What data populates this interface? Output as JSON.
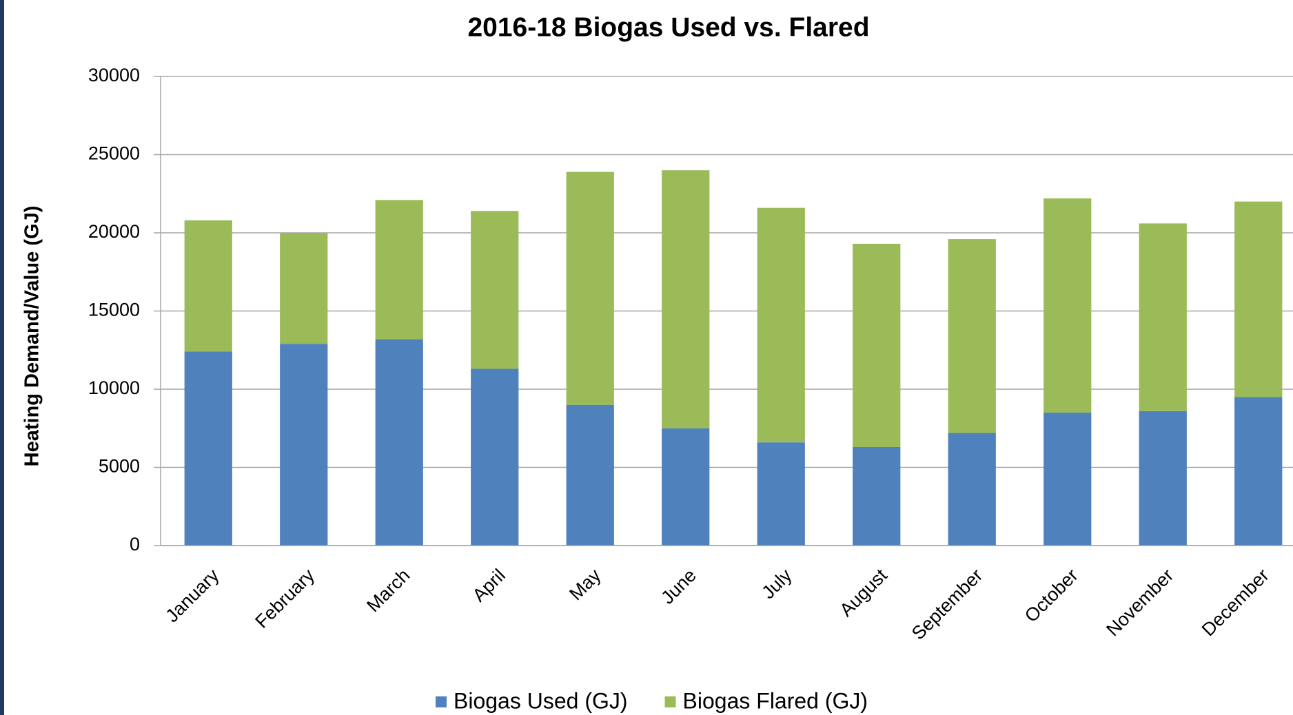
{
  "chart_data": {
    "type": "stacked_bar",
    "title": "2016-18 Biogas Used vs. Flared",
    "y_label": "Heating Demand/Value (GJ)",
    "categories": [
      "January",
      "February",
      "March",
      "April",
      "May",
      "June",
      "July",
      "August",
      "September",
      "October",
      "November",
      "December"
    ],
    "series": [
      {
        "name": "Biogas Used (GJ)",
        "color": "#4f81bd",
        "values": [
          12400,
          12900,
          13200,
          11300,
          9000,
          7500,
          6600,
          6300,
          7200,
          8500,
          8600,
          9500
        ]
      },
      {
        "name": "Biogas Flared (GJ)",
        "color": "#9bbb59",
        "values": [
          8400,
          7100,
          8900,
          10100,
          14900,
          16500,
          15000,
          13000,
          12400,
          13700,
          12000,
          12500
        ]
      }
    ],
    "ylim": [
      0,
      30000
    ],
    "yticks": [
      0,
      5000,
      10000,
      15000,
      20000,
      25000,
      30000
    ],
    "grid": true,
    "legend": "bottom"
  }
}
